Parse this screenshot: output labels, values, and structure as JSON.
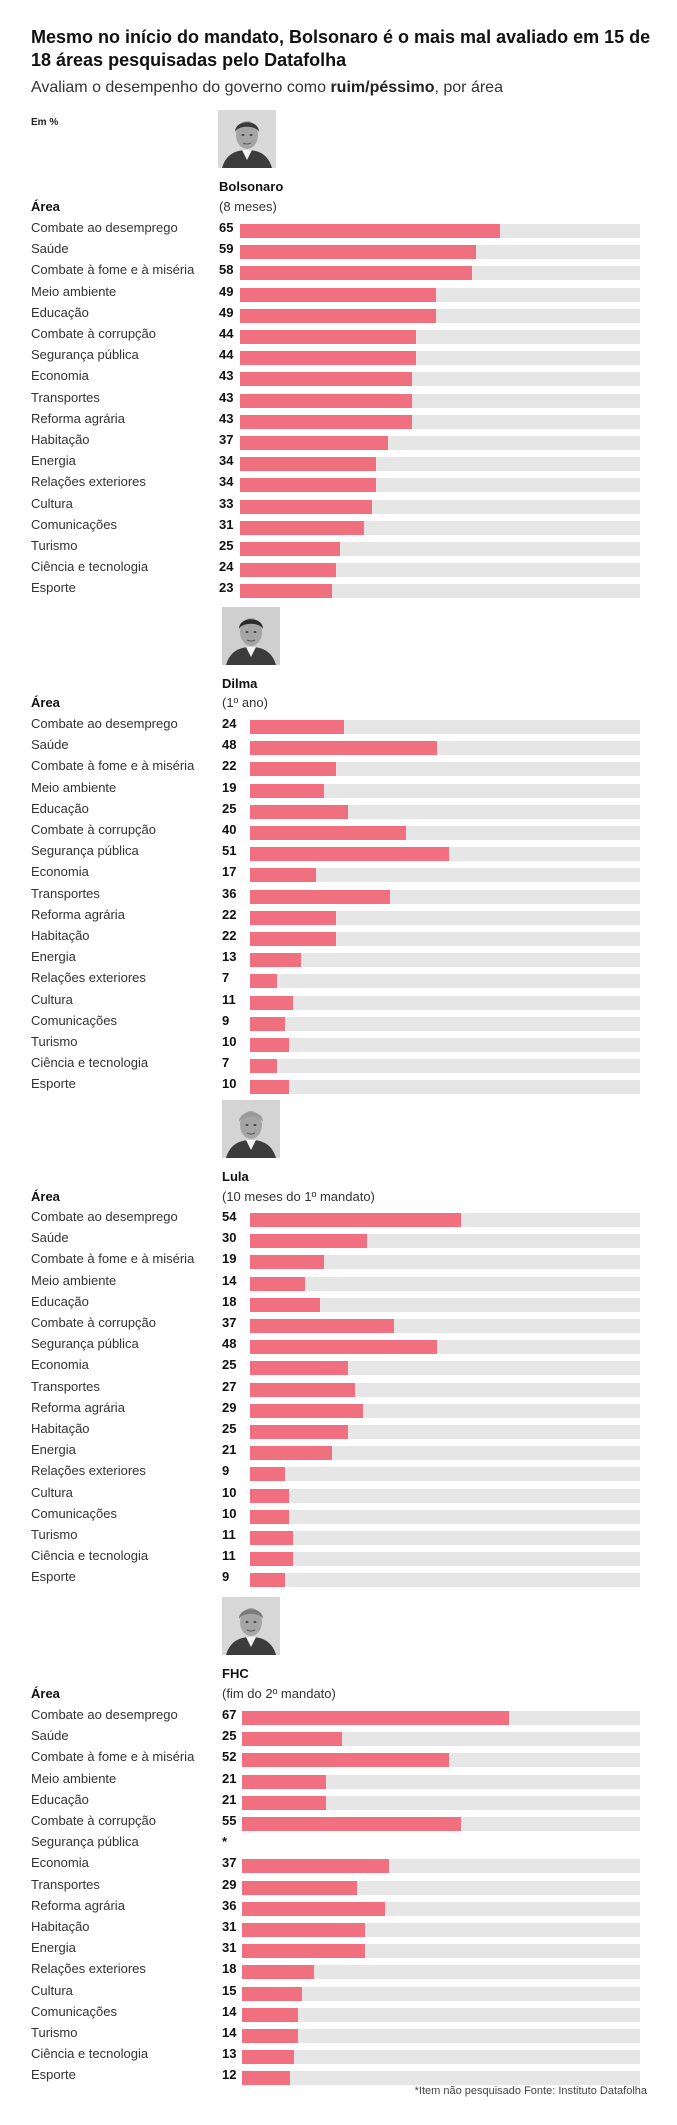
{
  "title": "Mesmo no início do mandato, Bolsonaro é o mais mal avaliado em 15 de 18 áreas pesquisadas pelo Datafolha",
  "subtitle": {
    "pre": "Avaliam o desempenho do governo como ",
    "bold": "ruim/péssimo",
    "post": ", por área"
  },
  "unit_label": "Em %",
  "area_header": "Área",
  "not_surveyed_marker": "*",
  "footnote": "*Item não pesquisado Fonte: Instituto Datafolha",
  "colors": {
    "bar": "#f07080",
    "track": "#e6e6e6"
  },
  "chart_data": [
    {
      "type": "bar",
      "orientation": "horizontal",
      "name": "Bolsonaro",
      "period": "(8 meses)",
      "photo_icon": "bolsonaro-portrait",
      "categories": [
        "Combate ao desemprego",
        "Saúde",
        "Combate à fome e à miséria",
        "Meio ambiente",
        "Educação",
        "Combate à corrupção",
        "Segurança pública",
        "Economia",
        "Transportes",
        "Reforma agrária",
        "Habitação",
        "Energia",
        "Relações exteriores",
        "Cultura",
        "Comunicações",
        "Turismo",
        "Ciência e tecnologia",
        "Esporte"
      ],
      "values": [
        65,
        59,
        58,
        49,
        49,
        44,
        44,
        43,
        43,
        43,
        37,
        34,
        34,
        33,
        31,
        25,
        24,
        23
      ],
      "xlim": [
        0,
        100
      ]
    },
    {
      "type": "bar",
      "orientation": "horizontal",
      "name": "Dilma",
      "period": "(1º ano)",
      "photo_icon": "dilma-portrait",
      "categories": [
        "Combate ao desemprego",
        "Saúde",
        "Combate à fome e à miséria",
        "Meio ambiente",
        "Educação",
        "Combate à corrupção",
        "Segurança pública",
        "Economia",
        "Transportes",
        "Reforma agrária",
        "Habitação",
        "Energia",
        "Relações exteriores",
        "Cultura",
        "Comunicações",
        "Turismo",
        "Ciência e tecnologia",
        "Esporte"
      ],
      "values": [
        24,
        48,
        22,
        19,
        25,
        40,
        51,
        17,
        36,
        22,
        22,
        13,
        7,
        11,
        9,
        10,
        7,
        10
      ],
      "xlim": [
        0,
        100
      ]
    },
    {
      "type": "bar",
      "orientation": "horizontal",
      "name": "Lula",
      "period": "(10 meses do 1º mandato)",
      "photo_icon": "lula-portrait",
      "categories": [
        "Combate ao desemprego",
        "Saúde",
        "Combate à fome e à miséria",
        "Meio ambiente",
        "Educação",
        "Combate à corrupção",
        "Segurança pública",
        "Economia",
        "Transportes",
        "Reforma agrária",
        "Habitação",
        "Energia",
        "Relações exteriores",
        "Cultura",
        "Comunicações",
        "Turismo",
        "Ciência e tecnologia",
        "Esporte"
      ],
      "values": [
        54,
        30,
        19,
        14,
        18,
        37,
        48,
        25,
        27,
        29,
        25,
        21,
        9,
        10,
        10,
        11,
        11,
        9
      ],
      "xlim": [
        0,
        100
      ]
    },
    {
      "type": "bar",
      "orientation": "horizontal",
      "name": "FHC",
      "period": "(fim do 2º mandato)",
      "photo_icon": "fhc-portrait",
      "categories": [
        "Combate ao desemprego",
        "Saúde",
        "Combate à fome e à miséria",
        "Meio ambiente",
        "Educação",
        "Combate à corrupção",
        "Segurança pública",
        "Economia",
        "Transportes",
        "Reforma agrária",
        "Habitação",
        "Energia",
        "Relações exteriores",
        "Cultura",
        "Comunicações",
        "Turismo",
        "Ciência e tecnologia",
        "Esporte"
      ],
      "values": [
        67,
        25,
        52,
        21,
        21,
        55,
        null,
        37,
        29,
        36,
        31,
        31,
        18,
        15,
        14,
        14,
        13,
        12
      ],
      "xlim": [
        0,
        100
      ]
    }
  ]
}
